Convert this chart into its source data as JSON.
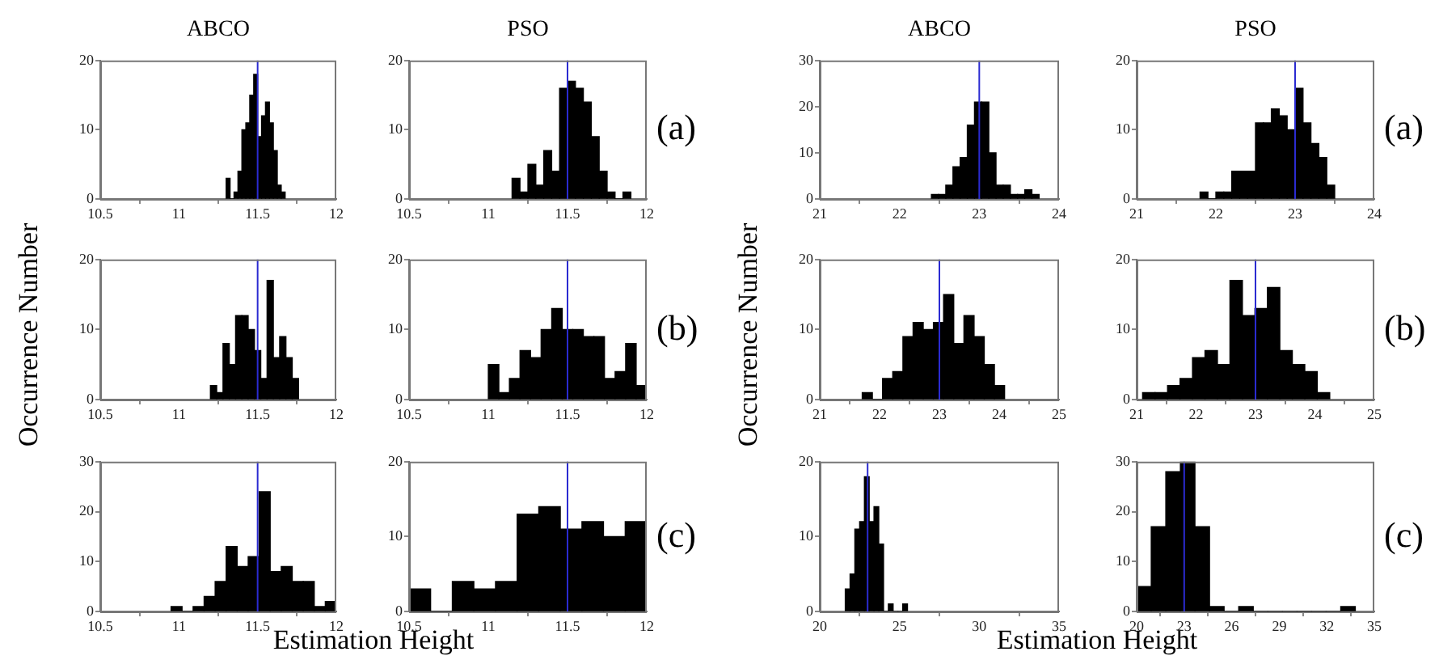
{
  "chart_data": [
    {
      "type": "histogram",
      "title": "ABCO",
      "bins": [
        11.3,
        11.325,
        11.35,
        11.375,
        11.4,
        11.425,
        11.45,
        11.475,
        11.5,
        11.525,
        11.55,
        11.575,
        11.6,
        11.625,
        11.65,
        11.675
      ],
      "values": [
        3,
        0,
        1,
        4,
        10,
        11,
        15,
        18,
        9,
        12,
        14,
        11,
        7,
        2,
        1
      ],
      "color": "#000000",
      "xlim": [
        10.5,
        12
      ],
      "xticks": [
        10.5,
        11,
        11.5,
        12
      ],
      "ylim": [
        0,
        20
      ],
      "yticks": [
        0,
        10,
        20
      ],
      "ref_lines": [
        {
          "axis": "x",
          "value": 11.5,
          "color": "#2b2bd1"
        }
      ]
    },
    {
      "type": "histogram",
      "title": "PSO",
      "bins": [
        11.15,
        11.2,
        11.25,
        11.3,
        11.35,
        11.4,
        11.45,
        11.5,
        11.55,
        11.6,
        11.65,
        11.7,
        11.75,
        11.8,
        11.85,
        11.9
      ],
      "values": [
        3,
        1,
        5,
        2,
        7,
        4,
        16,
        17,
        16,
        14,
        9,
        4,
        1,
        0,
        1
      ],
      "color": "#000000",
      "xlim": [
        10.5,
        12
      ],
      "xticks": [
        10.5,
        11,
        11.5,
        12
      ],
      "ylim": [
        0,
        20
      ],
      "yticks": [
        0,
        10,
        20
      ],
      "ref_lines": [
        {
          "axis": "x",
          "value": 11.5,
          "color": "#2b2bd1"
        }
      ],
      "annotations": [
        "(a)"
      ]
    },
    {
      "type": "histogram",
      "ylabel": "Occurrence Number",
      "bins": [
        11.2,
        11.24,
        11.28,
        11.32,
        11.36,
        11.4,
        11.44,
        11.48,
        11.52,
        11.56,
        11.6,
        11.64,
        11.68,
        11.72,
        11.76
      ],
      "values": [
        2,
        1,
        8,
        5,
        12,
        12,
        10,
        7,
        3,
        17,
        6,
        9,
        6,
        3
      ],
      "color": "#000000",
      "xlim": [
        10.5,
        12
      ],
      "xticks": [
        10.5,
        11,
        11.5,
        12
      ],
      "ylim": [
        0,
        20
      ],
      "yticks": [
        0,
        10,
        20
      ],
      "ref_lines": [
        {
          "axis": "x",
          "value": 11.5,
          "color": "#2b2bd1"
        }
      ]
    },
    {
      "type": "histogram",
      "bins": [
        11,
        11.067,
        11.133,
        11.2,
        11.267,
        11.333,
        11.4,
        11.467,
        11.533,
        11.6,
        11.667,
        11.733,
        11.8,
        11.867,
        11.933,
        12
      ],
      "values": [
        5,
        1,
        3,
        7,
        6,
        10,
        13,
        10,
        10,
        9,
        9,
        3,
        4,
        8,
        2
      ],
      "color": "#000000",
      "xlim": [
        10.5,
        12
      ],
      "xticks": [
        10.5,
        11,
        11.5,
        12
      ],
      "ylim": [
        0,
        20
      ],
      "yticks": [
        0,
        10,
        20
      ],
      "ref_lines": [
        {
          "axis": "x",
          "value": 11.5,
          "color": "#2b2bd1"
        }
      ],
      "annotations": [
        "(b)"
      ]
    },
    {
      "type": "histogram",
      "xlabel": "Estimation Height",
      "bins": [
        10.95,
        11.02,
        11.09,
        11.16,
        11.23,
        11.3,
        11.37,
        11.44,
        11.51,
        11.58,
        11.65,
        11.72,
        11.79,
        11.86,
        11.93,
        12
      ],
      "values": [
        1,
        0,
        1,
        3,
        6,
        13,
        9,
        11,
        24,
        8,
        9,
        6,
        6,
        1,
        2
      ],
      "color": "#000000",
      "xlim": [
        10.5,
        12
      ],
      "xticks": [
        10.5,
        11,
        11.5,
        12
      ],
      "ylim": [
        0,
        30
      ],
      "yticks": [
        0,
        10,
        20,
        30
      ],
      "ref_lines": [
        {
          "axis": "x",
          "value": 11.5,
          "color": "#2b2bd1"
        }
      ]
    },
    {
      "type": "histogram",
      "bins": [
        10.5,
        10.636,
        10.773,
        10.909,
        11.045,
        11.182,
        11.318,
        11.455,
        11.591,
        11.727,
        11.864,
        12
      ],
      "values": [
        3,
        0,
        4,
        3,
        4,
        13,
        14,
        11,
        12,
        10,
        12
      ],
      "color": "#000000",
      "xlim": [
        10.5,
        12
      ],
      "xticks": [
        10.5,
        11,
        11.5,
        12
      ],
      "ylim": [
        0,
        20
      ],
      "yticks": [
        0,
        10,
        20
      ],
      "ref_lines": [
        {
          "axis": "x",
          "value": 11.5,
          "color": "#2b2bd1"
        }
      ],
      "annotations": [
        "(c)"
      ]
    },
    {
      "type": "histogram",
      "title": "ABCO",
      "bins": [
        22.4,
        22.49,
        22.58,
        22.67,
        22.76,
        22.85,
        22.94,
        23.03,
        23.12,
        23.21,
        23.3,
        23.39,
        23.48,
        23.57,
        23.66,
        23.75
      ],
      "values": [
        1,
        1,
        3,
        7,
        9,
        16,
        21,
        21,
        10,
        3,
        3,
        1,
        1,
        2,
        1
      ],
      "color": "#000000",
      "xlim": [
        21,
        24
      ],
      "xticks": [
        21,
        22,
        23,
        24
      ],
      "ylim": [
        0,
        30
      ],
      "yticks": [
        0,
        10,
        20,
        30
      ],
      "ref_lines": [
        {
          "axis": "x",
          "value": 23,
          "color": "#2b2bd1"
        }
      ]
    },
    {
      "type": "histogram",
      "title": "PSO",
      "bins": [
        21.8,
        21.9,
        22,
        22.1,
        22.2,
        22.3,
        22.4,
        22.5,
        22.6,
        22.7,
        22.8,
        22.9,
        23,
        23.1,
        23.2,
        23.3,
        23.4,
        23.5
      ],
      "values": [
        1,
        0,
        1,
        1,
        4,
        4,
        4,
        11,
        11,
        13,
        12,
        10,
        16,
        11,
        8,
        6,
        2
      ],
      "color": "#000000",
      "xlim": [
        21,
        24
      ],
      "xticks": [
        21,
        22,
        23,
        24
      ],
      "ylim": [
        0,
        20
      ],
      "yticks": [
        0,
        10,
        20
      ],
      "ref_lines": [
        {
          "axis": "x",
          "value": 23,
          "color": "#2b2bd1"
        }
      ],
      "annotations": [
        "(a)"
      ]
    },
    {
      "type": "histogram",
      "ylabel": "Occurrence Number",
      "bins": [
        21.71,
        21.88,
        22.05,
        22.22,
        22.39,
        22.56,
        22.73,
        22.9,
        23.07,
        23.24,
        23.41,
        23.58,
        23.75,
        23.92,
        24.09
      ],
      "values": [
        1,
        0,
        3,
        4,
        9,
        11,
        10,
        11,
        15,
        8,
        12,
        9,
        5,
        2
      ],
      "color": "#000000",
      "xlim": [
        21,
        25
      ],
      "xticks": [
        21,
        22,
        23,
        24,
        25
      ],
      "ylim": [
        0,
        20
      ],
      "yticks": [
        0,
        10,
        20
      ],
      "ref_lines": [
        {
          "axis": "x",
          "value": 23,
          "color": "#2b2bd1"
        }
      ]
    },
    {
      "type": "histogram",
      "bins": [
        21.1,
        21.31,
        21.52,
        21.73,
        21.94,
        22.15,
        22.36,
        22.57,
        22.78,
        22.99,
        23.2,
        23.41,
        23.62,
        23.83,
        24.04,
        24.25
      ],
      "values": [
        1,
        1,
        2,
        3,
        6,
        7,
        5,
        17,
        12,
        13,
        16,
        7,
        5,
        4,
        1
      ],
      "color": "#000000",
      "xlim": [
        21,
        25
      ],
      "xticks": [
        21,
        22,
        23,
        24,
        25
      ],
      "ylim": [
        0,
        20
      ],
      "yticks": [
        0,
        10,
        20
      ],
      "ref_lines": [
        {
          "axis": "x",
          "value": 23,
          "color": "#2b2bd1"
        }
      ],
      "annotations": [
        "(b)"
      ]
    },
    {
      "type": "histogram",
      "xlabel": "Estimation Height",
      "bins": [
        21.6,
        21.9,
        22.2,
        22.5,
        22.8,
        23.1,
        23.4,
        23.7,
        24,
        24.3,
        24.6,
        24.9,
        25.2,
        25.5
      ],
      "values": [
        3,
        5,
        11,
        12,
        18,
        12,
        14,
        9,
        0,
        1,
        0,
        0,
        1
      ],
      "color": "#000000",
      "xlim": [
        20,
        35
      ],
      "xticks": [
        20,
        25,
        30,
        35
      ],
      "ylim": [
        0,
        20
      ],
      "yticks": [
        0,
        10,
        20
      ],
      "ref_lines": [
        {
          "axis": "x",
          "value": 23,
          "color": "#2b2bd1"
        }
      ]
    },
    {
      "type": "histogram",
      "bins": [
        20,
        20.92,
        21.84,
        22.76,
        23.68,
        24.6,
        25.52,
        26.44,
        27.36,
        28.28,
        29.2,
        30.12,
        31.04,
        31.96,
        32.88,
        33.8
      ],
      "values": [
        5,
        17,
        28,
        30,
        17,
        1,
        0,
        1,
        0,
        0,
        0,
        0,
        0,
        0,
        1
      ],
      "color": "#000000",
      "xlim": [
        20,
        35
      ],
      "xticks": [
        20,
        23,
        26,
        29,
        32,
        35
      ],
      "ylim": [
        0,
        30
      ],
      "yticks": [
        0,
        10,
        20,
        30
      ],
      "ref_lines": [
        {
          "axis": "x",
          "value": 23,
          "color": "#2b2bd1"
        }
      ],
      "annotations": [
        "(c)"
      ]
    }
  ]
}
